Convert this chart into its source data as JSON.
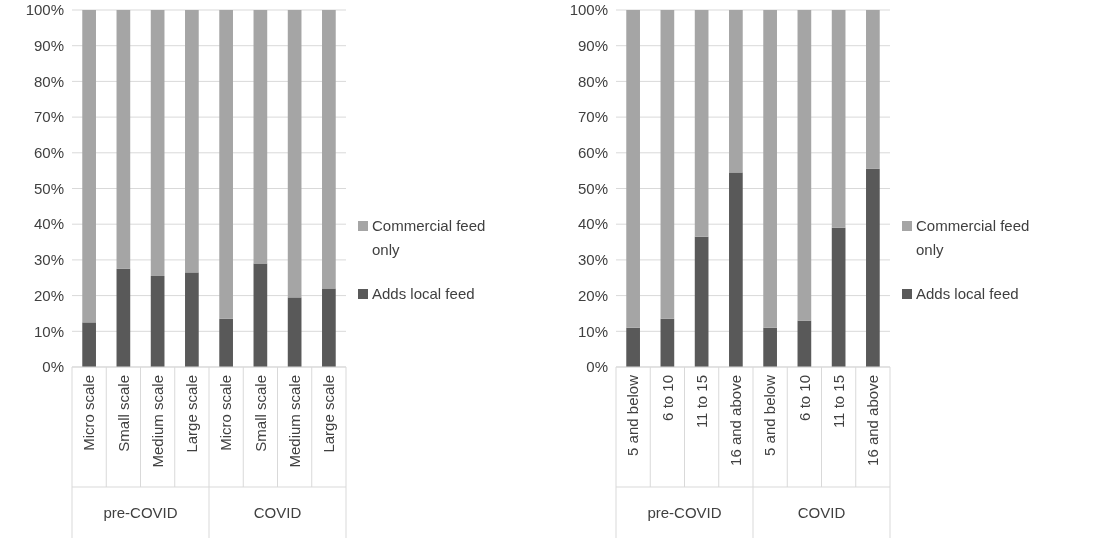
{
  "chart_data": [
    {
      "type": "bar",
      "stacked": true,
      "categories": [
        "Micro scale",
        "Small scale",
        "Medium scale",
        "Large scale",
        "Micro scale",
        "Small scale",
        "Medium scale",
        "Large scale"
      ],
      "series": [
        {
          "name": "Adds local feed",
          "color": "#595959",
          "values": [
            12.5,
            27.5,
            25.5,
            26.5,
            13.5,
            29,
            19.5,
            22
          ]
        },
        {
          "name": "Commercial feed only",
          "color": "#a5a5a5",
          "values": [
            87.5,
            72.5,
            74.5,
            73.5,
            86.5,
            71,
            80.5,
            78
          ]
        }
      ],
      "ylim": [
        0,
        100
      ],
      "yticks": [
        {
          "value": 0,
          "label": "0%"
        },
        {
          "value": 10,
          "label": "10%"
        },
        {
          "value": 20,
          "label": "20%"
        },
        {
          "value": 30,
          "label": "30%"
        },
        {
          "value": 40,
          "label": "40%"
        },
        {
          "value": 50,
          "label": "50%"
        },
        {
          "value": 60,
          "label": "60%"
        },
        {
          "value": 70,
          "label": "70%"
        },
        {
          "value": 80,
          "label": "80%"
        },
        {
          "value": 90,
          "label": "90%"
        },
        {
          "value": 100,
          "label": "100%"
        }
      ],
      "grid": "y",
      "legend": "right",
      "annotations": [
        "pre-COVID",
        "COVID"
      ]
    },
    {
      "type": "bar",
      "stacked": true,
      "categories": [
        "5 and below",
        "6 to 10",
        "11 to 15",
        "16 and above",
        "5 and below",
        "6 to 10",
        "11 to 15",
        "16 and above"
      ],
      "series": [
        {
          "name": "Adds local feed",
          "color": "#595959",
          "values": [
            11,
            13.5,
            36.5,
            54.5,
            11,
            13,
            39,
            55.5
          ]
        },
        {
          "name": "Commercial feed only",
          "color": "#a5a5a5",
          "values": [
            89,
            86.5,
            63.5,
            45.5,
            89,
            87,
            61,
            44.5
          ]
        }
      ],
      "ylim": [
        0,
        100
      ],
      "yticks": [
        {
          "value": 0,
          "label": "0%"
        },
        {
          "value": 10,
          "label": "10%"
        },
        {
          "value": 20,
          "label": "20%"
        },
        {
          "value": 30,
          "label": "30%"
        },
        {
          "value": 40,
          "label": "40%"
        },
        {
          "value": 50,
          "label": "50%"
        },
        {
          "value": 60,
          "label": "60%"
        },
        {
          "value": 70,
          "label": "70%"
        },
        {
          "value": 80,
          "label": "80%"
        },
        {
          "value": 90,
          "label": "90%"
        },
        {
          "value": 100,
          "label": "100%"
        }
      ],
      "grid": "y",
      "legend": "right",
      "annotations": [
        "pre-COVID",
        "COVID"
      ]
    }
  ]
}
